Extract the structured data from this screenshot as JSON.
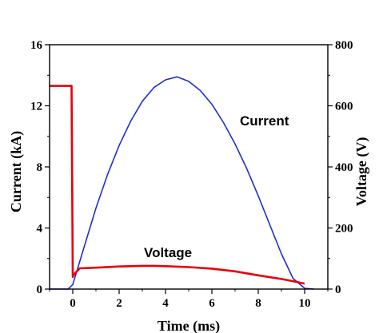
{
  "chart_data": {
    "type": "line",
    "title": "",
    "xlabel": "Time (ms)",
    "ylabel_left": "Current (kA)",
    "ylabel_right": "Voltage (V)",
    "xlim": [
      -1,
      11
    ],
    "ylim_left": [
      0,
      16
    ],
    "ylim_right": [
      0,
      800
    ],
    "x_ticks": [
      0,
      2,
      4,
      6,
      8,
      10
    ],
    "y_left_ticks": [
      0,
      4,
      8,
      12,
      16
    ],
    "y_right_ticks": [
      0,
      200,
      400,
      600,
      800
    ],
    "grid": false,
    "legend": "none",
    "annotations": [
      {
        "text": "Current",
        "color": "#000000"
      },
      {
        "text": "Voltage",
        "color": "#000000"
      }
    ],
    "series": [
      {
        "axis": "left",
        "color": "#1f2fd0",
        "x": [
          -1.0,
          -0.2,
          0.0,
          0.5,
          1.0,
          1.5,
          2.0,
          2.5,
          3.0,
          3.5,
          4.0,
          4.5,
          5.0,
          5.5,
          6.0,
          6.5,
          7.0,
          7.5,
          8.0,
          8.5,
          9.0,
          9.5,
          10.0,
          10.4
        ],
        "y": [
          0.0,
          0.0,
          0.3,
          2.8,
          5.3,
          7.5,
          9.4,
          11.0,
          12.3,
          13.2,
          13.7,
          13.9,
          13.6,
          13.0,
          12.1,
          10.9,
          9.5,
          7.9,
          6.1,
          4.2,
          2.3,
          0.7,
          0.05,
          0.0
        ]
      },
      {
        "axis": "right",
        "color": "#e8000b",
        "x": [
          -1.0,
          -0.1,
          -0.05,
          0.0,
          0.05,
          0.3,
          1.0,
          2.0,
          3.0,
          3.5,
          4.0,
          5.0,
          6.0,
          7.0,
          8.0,
          9.0,
          9.5,
          10.0
        ],
        "y": [
          665,
          665,
          665,
          40,
          48,
          68,
          70,
          74,
          76,
          76,
          75,
          72,
          67,
          58,
          45,
          33,
          26,
          18
        ]
      }
    ]
  }
}
